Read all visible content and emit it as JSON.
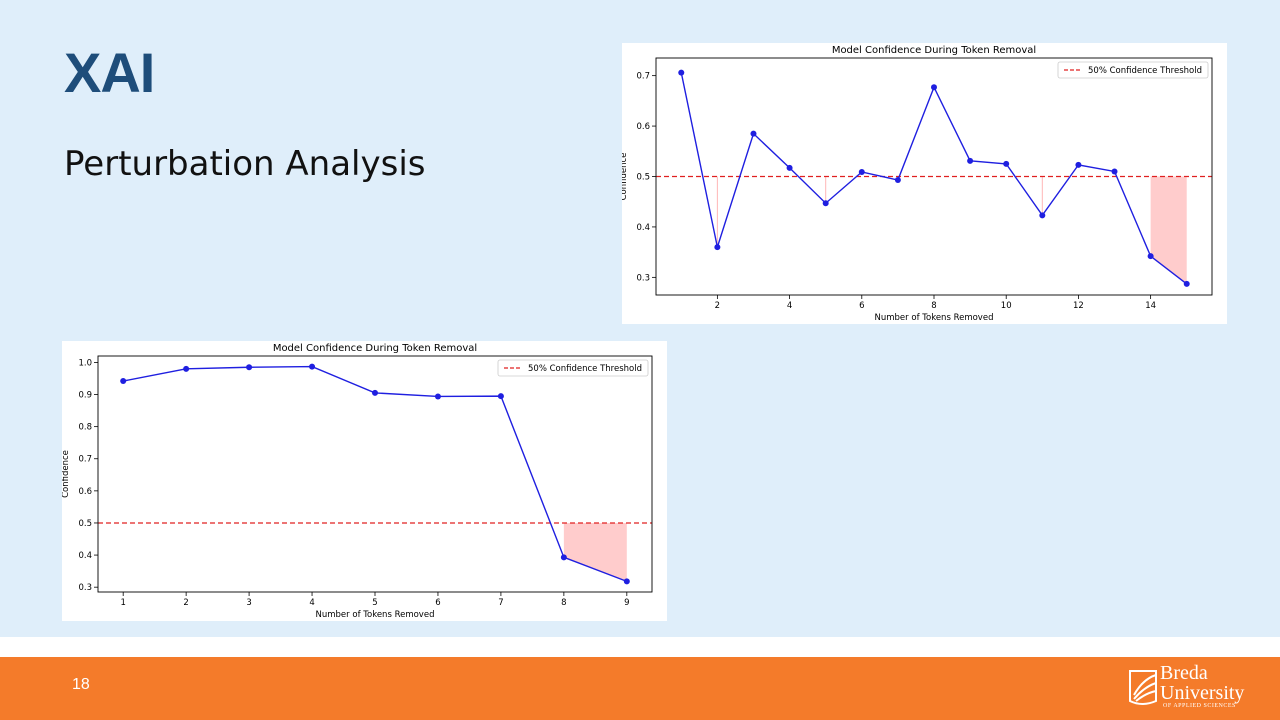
{
  "slide": {
    "title": "XAI",
    "subtitle": "Perturbation Analysis",
    "page_number": "18"
  },
  "logo": {
    "line1": "Breda",
    "line2": "University",
    "line3": "OF APPLIED SCIENCES"
  },
  "colors": {
    "background": "#dfeefa",
    "title": "#1e4d7a",
    "footer": "#f47b2a",
    "line": "#1f1fe0",
    "threshold": "#e02020",
    "fill": "#ffb6b6"
  },
  "chart_data": [
    {
      "type": "line",
      "title": "Model Confidence During Token Removal",
      "xlabel": "Number of Tokens Removed",
      "ylabel": "Confidence",
      "x": [
        1,
        2,
        3,
        4,
        5,
        6,
        7,
        8,
        9,
        10,
        11,
        12,
        13,
        14,
        15
      ],
      "values": [
        0.706,
        0.36,
        0.585,
        0.517,
        0.447,
        0.509,
        0.493,
        0.677,
        0.531,
        0.525,
        0.423,
        0.523,
        0.51,
        0.342,
        0.287
      ],
      "xlim": [
        0.3,
        15.7
      ],
      "ylim": [
        0.265,
        0.735
      ],
      "xticks": [
        2,
        4,
        6,
        8,
        10,
        12,
        14
      ],
      "yticks": [
        0.3,
        0.4,
        0.5,
        0.6,
        0.7
      ],
      "threshold": 0.5,
      "legend": "50% Confidence Threshold",
      "legend_position": "top-right",
      "fill_below_threshold": "last-points"
    },
    {
      "type": "line",
      "title": "Model Confidence During Token Removal",
      "xlabel": "Number of Tokens Removed",
      "ylabel": "Confidence",
      "x": [
        1,
        2,
        3,
        4,
        5,
        6,
        7,
        8,
        9
      ],
      "values": [
        0.942,
        0.98,
        0.985,
        0.987,
        0.905,
        0.894,
        0.895,
        0.393,
        0.318
      ],
      "xlim": [
        0.6,
        9.4
      ],
      "ylim": [
        0.285,
        1.02
      ],
      "xticks": [
        1,
        2,
        3,
        4,
        5,
        6,
        7,
        8,
        9
      ],
      "yticks": [
        0.3,
        0.4,
        0.5,
        0.6,
        0.7,
        0.8,
        0.9,
        1.0
      ],
      "threshold": 0.5,
      "legend": "50% Confidence Threshold",
      "legend_position": "top-right",
      "fill_below_threshold": "last-points"
    }
  ]
}
